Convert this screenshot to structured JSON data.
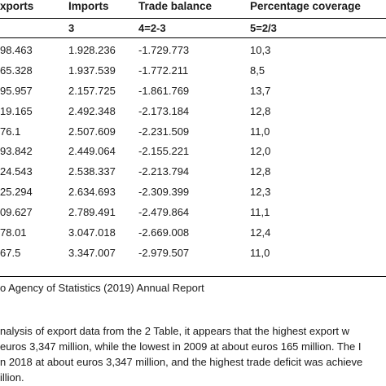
{
  "table": {
    "headers": {
      "exports": "xports",
      "imports": "Imports",
      "trade_balance": "Trade balance",
      "percentage_coverage": "Percentage coverage"
    },
    "subheaders": {
      "imports": "3",
      "trade_balance": "4=2-3",
      "percentage_coverage": "5=2/3"
    },
    "rows": [
      {
        "exports": "98.463",
        "imports": "1.928.236",
        "balance": "-1.729.773",
        "coverage": "10,3"
      },
      {
        "exports": "65.328",
        "imports": "1.937.539",
        "balance": "-1.772.211",
        "coverage": "8,5"
      },
      {
        "exports": "95.957",
        "imports": "2.157.725",
        "balance": "-1.861.769",
        "coverage": "13,7"
      },
      {
        "exports": "19.165",
        "imports": "2.492.348",
        "balance": "-2.173.184",
        "coverage": "12,8"
      },
      {
        "exports": "76.1",
        "imports": "2.507.609",
        "balance": "-2.231.509",
        "coverage": "11,0"
      },
      {
        "exports": "93.842",
        "imports": "2.449.064",
        "balance": "-2.155.221",
        "coverage": "12,0"
      },
      {
        "exports": "24.543",
        "imports": "2.538.337",
        "balance": "-2.213.794",
        "coverage": "12,8"
      },
      {
        "exports": "25.294",
        "imports": "2.634.693",
        "balance": "-2.309.399",
        "coverage": "12,3"
      },
      {
        "exports": "09.627",
        "imports": "2.789.491",
        "balance": "-2.479.864",
        "coverage": "11,1"
      },
      {
        "exports": "78.01",
        "imports": "3.047.018",
        "balance": "-2.669.008",
        "coverage": "12,4"
      },
      {
        "exports": "67.5",
        "imports": "3.347.007",
        "balance": "-2.979.507",
        "coverage": "11,0"
      }
    ]
  },
  "source_note": "o Agency of Statistics (2019) Annual Report",
  "paragraph_lines": [
    "nalysis of export data from the 2 Table, it appears that the highest export w",
    "euros 3,347 million, while the lowest in 2009 at about euros 165 million. The I",
    "n 2018 at about euros 3,347 million, and the highest trade deficit was achieve",
    "illion."
  ]
}
